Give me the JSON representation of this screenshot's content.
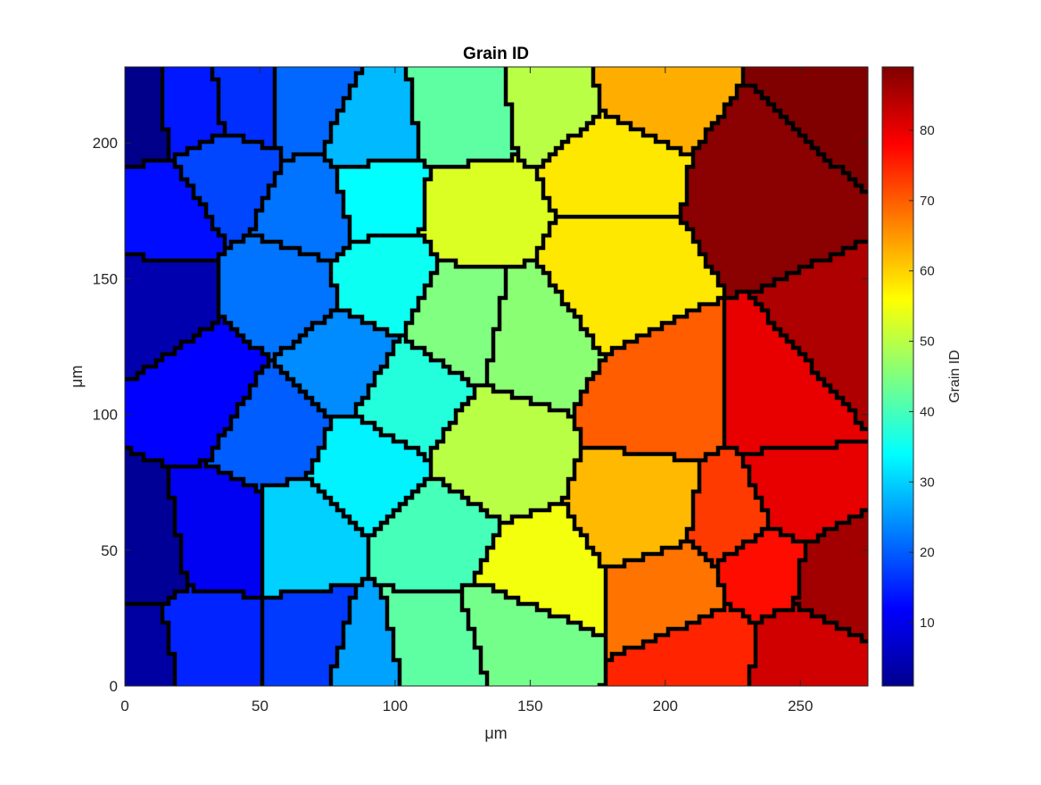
{
  "chart_data": {
    "type": "heatmap",
    "title": "Grain ID",
    "xlabel": "μm",
    "ylabel": "μm",
    "xlim": [
      0,
      275
    ],
    "ylim": [
      0,
      228
    ],
    "xticks": [
      0,
      50,
      100,
      150,
      200,
      250
    ],
    "yticks": [
      0,
      50,
      100,
      150,
      200
    ],
    "grid": false,
    "colormap": "jet",
    "colorbar": {
      "label": "Grain ID",
      "limits": [
        1,
        89
      ],
      "ticks": [
        10,
        20,
        30,
        40,
        50,
        60,
        70,
        80
      ],
      "placement": "right"
    },
    "grain_boundaries": "thick black lines",
    "grains": [
      {
        "id": 2,
        "x": 4,
        "y": 210
      },
      {
        "id": 5,
        "x": 10,
        "y": 140
      },
      {
        "id": 3,
        "x": 5,
        "y": 50
      },
      {
        "id": 4,
        "x": 4,
        "y": 10
      },
      {
        "id": 14,
        "x": 25,
        "y": 212
      },
      {
        "id": 13,
        "x": 13,
        "y": 175
      },
      {
        "id": 12,
        "x": 30,
        "y": 110
      },
      {
        "id": 11,
        "x": 35,
        "y": 55
      },
      {
        "id": 15,
        "x": 30,
        "y": 15
      },
      {
        "id": 16,
        "x": 45,
        "y": 215
      },
      {
        "id": 18,
        "x": 37,
        "y": 190
      },
      {
        "id": 21,
        "x": 68,
        "y": 215
      },
      {
        "id": 22,
        "x": 70,
        "y": 175
      },
      {
        "id": 22,
        "x": 60,
        "y": 145
      },
      {
        "id": 20,
        "x": 55,
        "y": 95
      },
      {
        "id": 17,
        "x": 70,
        "y": 15
      },
      {
        "id": 24,
        "x": 80,
        "y": 120
      },
      {
        "id": 28,
        "x": 90,
        "y": 205
      },
      {
        "id": 30,
        "x": 65,
        "y": 55
      },
      {
        "id": 26,
        "x": 88,
        "y": 10
      },
      {
        "id": 33,
        "x": 90,
        "y": 80
      },
      {
        "id": 34,
        "x": 92,
        "y": 180
      },
      {
        "id": 35,
        "x": 95,
        "y": 150
      },
      {
        "id": 37,
        "x": 105,
        "y": 105
      },
      {
        "id": 40,
        "x": 115,
        "y": 55
      },
      {
        "id": 42,
        "x": 112,
        "y": 15
      },
      {
        "id": 42,
        "x": 125,
        "y": 210
      },
      {
        "id": 44,
        "x": 145,
        "y": 25
      },
      {
        "id": 45,
        "x": 125,
        "y": 135
      },
      {
        "id": 46,
        "x": 150,
        "y": 130
      },
      {
        "id": 50,
        "x": 135,
        "y": 85
      },
      {
        "id": 50,
        "x": 160,
        "y": 215
      },
      {
        "id": 53,
        "x": 130,
        "y": 175
      },
      {
        "id": 55,
        "x": 150,
        "y": 37
      },
      {
        "id": 58,
        "x": 178,
        "y": 195
      },
      {
        "id": 58,
        "x": 178,
        "y": 150
      },
      {
        "id": 62,
        "x": 195,
        "y": 65
      },
      {
        "id": 63,
        "x": 190,
        "y": 220
      },
      {
        "id": 68,
        "x": 205,
        "y": 35
      },
      {
        "id": 70,
        "x": 200,
        "y": 105
      },
      {
        "id": 73,
        "x": 225,
        "y": 60
      },
      {
        "id": 75,
        "x": 215,
        "y": 12
      },
      {
        "id": 77,
        "x": 235,
        "y": 45
      },
      {
        "id": 80,
        "x": 248,
        "y": 70
      },
      {
        "id": 80,
        "x": 245,
        "y": 105
      },
      {
        "id": 82,
        "x": 250,
        "y": 10
      },
      {
        "id": 85,
        "x": 268,
        "y": 125
      },
      {
        "id": 86,
        "x": 265,
        "y": 40
      },
      {
        "id": 88,
        "x": 240,
        "y": 185
      },
      {
        "id": 89,
        "x": 268,
        "y": 215
      }
    ]
  }
}
